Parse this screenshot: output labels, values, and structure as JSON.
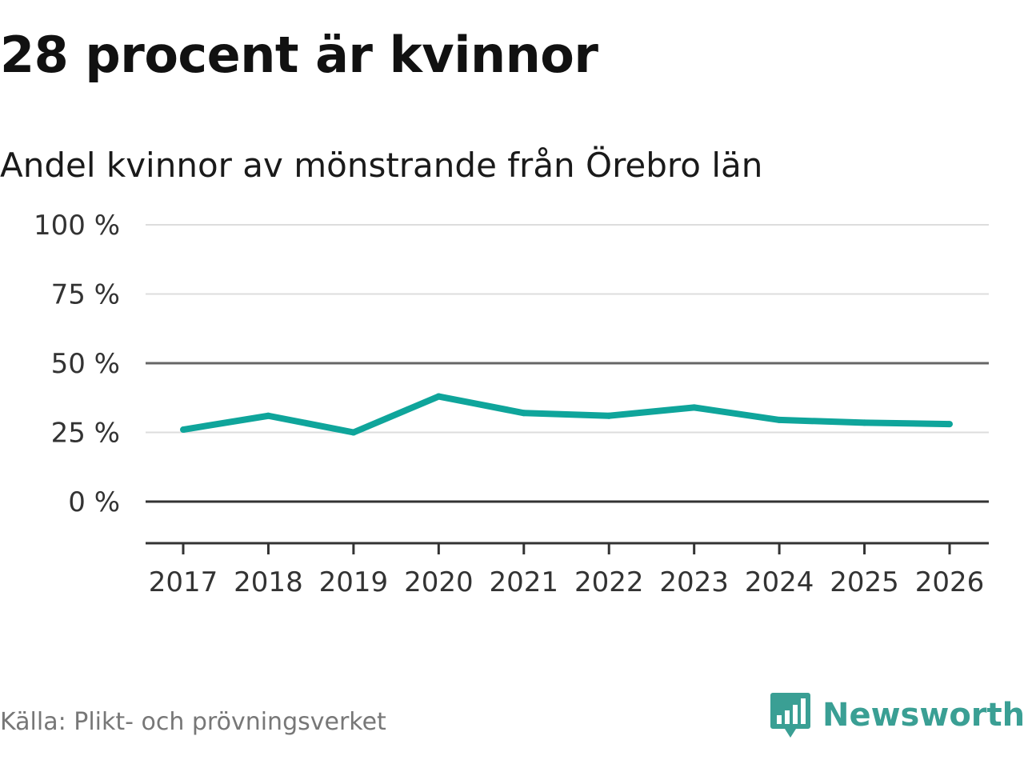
{
  "title": "28 procent är kvinnor",
  "subtitle": "Andel kvinnor av mönstrande från Örebro län",
  "source": "Källa: Plikt- och prövningsverket",
  "brand": {
    "name": "Newsworthy",
    "icon": "newsworthy-logo-icon",
    "color": "#3a9f94"
  },
  "chart_data": {
    "type": "line",
    "title": "28 procent är kvinnor",
    "subtitle": "Andel kvinnor av mönstrande från Örebro län",
    "x": [
      "2017",
      "2018",
      "2019",
      "2020",
      "2021",
      "2022",
      "2023",
      "2024",
      "2025",
      "2026"
    ],
    "series": [
      {
        "name": "Andel kvinnor",
        "color": "#0fa59b",
        "values": [
          26,
          31,
          25,
          38,
          32,
          31,
          34,
          29.5,
          28.5,
          28
        ]
      }
    ],
    "yticks": [
      0,
      25,
      50,
      75,
      100
    ],
    "ytick_labels": [
      "0 %",
      "25 %",
      "50 %",
      "75 %",
      "100 %"
    ],
    "ylim": [
      -15,
      100
    ],
    "xlabel": "",
    "ylabel": "",
    "grid": true
  }
}
